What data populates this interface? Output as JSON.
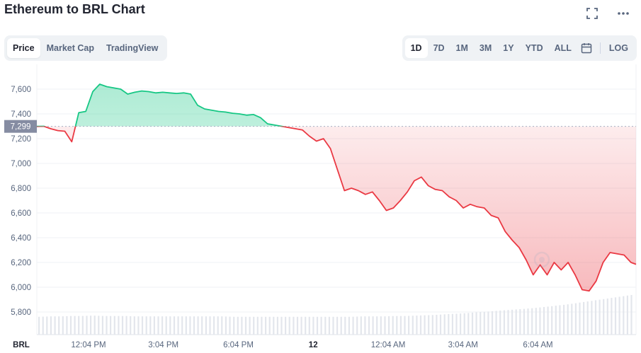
{
  "header": {
    "title": "Ethereum to BRL Chart"
  },
  "tabs": [
    {
      "label": "Price",
      "active": true
    },
    {
      "label": "Market Cap",
      "active": false
    },
    {
      "label": "TradingView",
      "active": false
    }
  ],
  "ranges": [
    {
      "label": "1D",
      "active": true
    },
    {
      "label": "7D",
      "active": false
    },
    {
      "label": "1M",
      "active": false
    },
    {
      "label": "3M",
      "active": false
    },
    {
      "label": "1Y",
      "active": false
    },
    {
      "label": "YTD",
      "active": false
    },
    {
      "label": "ALL",
      "active": false
    }
  ],
  "log_label": "LOG",
  "icons": {
    "fullscreen": "expand-icon",
    "more": "more-icon",
    "calendar": "calendar-icon"
  },
  "colors": {
    "up": "#16c784",
    "down": "#ea3943",
    "grid": "#eff2f5",
    "tag": "#858ca2"
  },
  "chart_data": {
    "type": "line",
    "title": "Ethereum to BRL Chart",
    "currency_label": "BRL",
    "reference_price": 7299,
    "reference_label": "7,299",
    "y_ticks": [
      5800,
      6000,
      6200,
      6400,
      6600,
      6800,
      7000,
      7200,
      7400,
      7600
    ],
    "y_tick_labels": [
      "5,800",
      "6,000",
      "6,200",
      "6,400",
      "6,600",
      "6,800",
      "7,000",
      "7,200",
      "7,400",
      "7,600"
    ],
    "x_tick_labels": [
      "12:04 PM",
      "3:04 PM",
      "6:04 PM",
      "12",
      "12:04 AM",
      "3:04 AM",
      "6:04 AM"
    ],
    "x_tick_hours": [
      2.07,
      5.07,
      8.07,
      11.07,
      14.07,
      17.07,
      20.07
    ],
    "bold_x_label": "12",
    "series": [
      {
        "x": [
          0.0,
          0.28,
          0.56,
          0.84,
          1.12,
          1.4,
          1.68,
          1.96,
          2.24,
          2.52,
          2.8,
          3.08,
          3.36,
          3.64,
          3.92,
          4.2,
          4.48,
          4.76,
          5.04,
          5.32,
          5.6,
          5.88,
          6.16,
          6.44,
          6.72,
          7.0,
          7.28,
          7.56,
          7.84,
          8.12,
          8.4,
          8.68,
          8.96,
          9.24,
          9.52,
          9.8,
          10.08,
          10.36,
          10.64,
          10.92,
          11.2,
          11.48,
          11.76,
          12.04,
          12.32,
          12.6,
          12.88,
          13.16,
          13.44,
          13.72,
          14.0,
          14.28,
          14.56,
          14.84,
          15.12,
          15.4,
          15.68,
          15.96,
          16.24,
          16.52,
          16.8,
          17.08,
          17.36,
          17.64,
          17.92,
          18.2,
          18.48,
          18.76,
          19.04,
          19.32,
          19.6,
          19.88,
          20.16,
          20.44,
          20.72,
          21.0,
          21.28,
          21.56,
          21.84,
          22.12,
          22.4,
          22.68,
          22.96,
          23.24,
          23.52,
          23.8,
          24.0
        ],
        "y": [
          7299,
          7300,
          7280,
          7265,
          7260,
          7175,
          7410,
          7420,
          7580,
          7640,
          7620,
          7610,
          7600,
          7560,
          7575,
          7585,
          7580,
          7570,
          7575,
          7570,
          7565,
          7570,
          7560,
          7470,
          7440,
          7430,
          7420,
          7415,
          7405,
          7400,
          7390,
          7395,
          7370,
          7320,
          7310,
          7300,
          7290,
          7280,
          7270,
          7220,
          7180,
          7200,
          7120,
          6950,
          6780,
          6800,
          6780,
          6750,
          6770,
          6700,
          6620,
          6640,
          6700,
          6770,
          6860,
          6890,
          6820,
          6790,
          6780,
          6730,
          6700,
          6640,
          6670,
          6650,
          6640,
          6580,
          6560,
          6450,
          6380,
          6320,
          6220,
          6100,
          6180,
          6100,
          6200,
          6140,
          6200,
          6100,
          5980,
          5970,
          6050,
          6200,
          6280,
          6270,
          6260,
          6200,
          6185
        ]
      }
    ],
    "volume_relative": [
      0.45,
      0.46,
      0.46,
      0.47,
      0.47,
      0.48,
      0.47,
      0.47,
      0.47,
      0.46,
      0.46,
      0.46,
      0.46,
      0.46,
      0.46,
      0.46,
      0.46,
      0.46,
      0.45,
      0.45,
      0.45,
      0.45,
      0.45,
      0.45,
      0.45,
      0.45,
      0.45,
      0.45,
      0.45,
      0.45,
      0.46,
      0.46,
      0.46,
      0.47,
      0.47,
      0.48,
      0.49,
      0.5,
      0.52,
      0.53,
      0.55,
      0.57,
      0.59,
      0.61,
      0.63,
      0.65,
      0.67,
      0.7,
      0.73,
      0.76,
      0.8,
      0.84,
      0.88,
      0.92,
      0.96,
      1.0
    ]
  }
}
